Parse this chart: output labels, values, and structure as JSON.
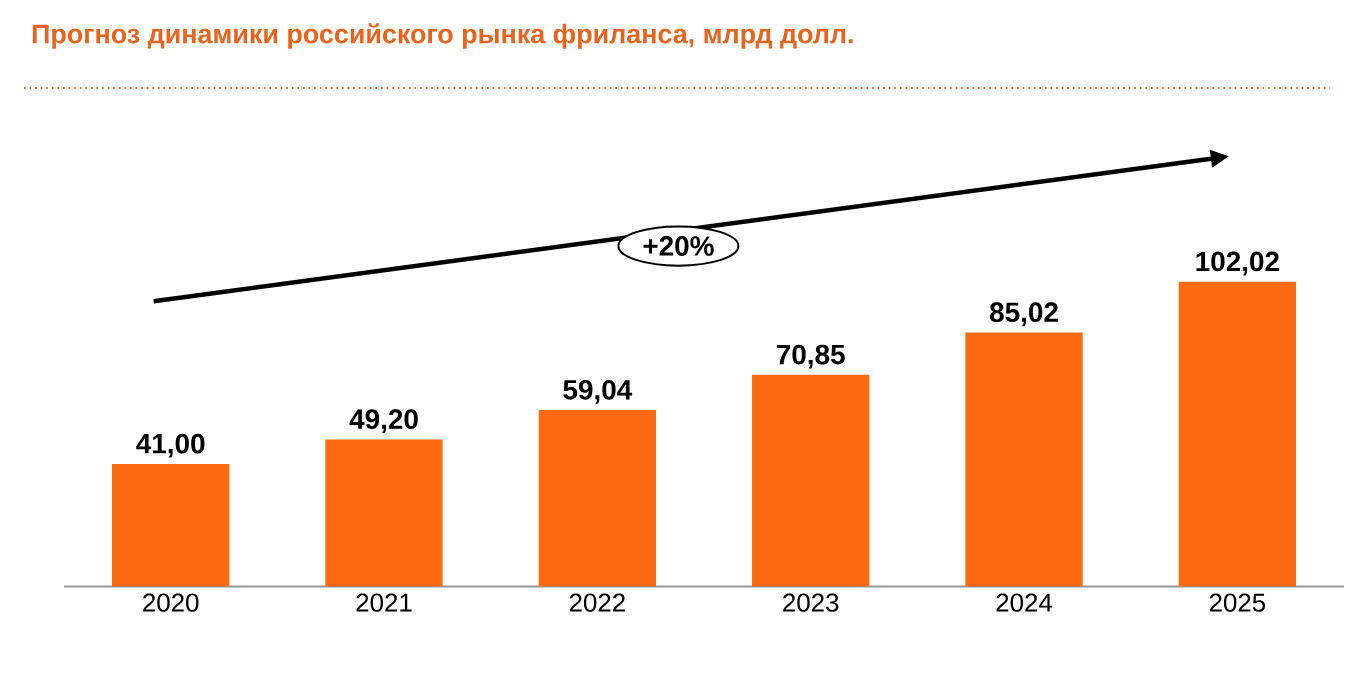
{
  "chart_data": {
    "type": "bar",
    "title": "Прогноз динамики российского рынка фриланса, млрд долл.",
    "categories": [
      "2020",
      "2021",
      "2022",
      "2023",
      "2024",
      "2025"
    ],
    "values": [
      41.0,
      49.2,
      59.04,
      70.85,
      85.02,
      102.02
    ],
    "value_labels": [
      "41,00",
      "49,20",
      "59,04",
      "70,85",
      "85,02",
      "102,02"
    ],
    "color": "#fe6a12",
    "annotations": [
      "+20%"
    ],
    "grid": false
  }
}
